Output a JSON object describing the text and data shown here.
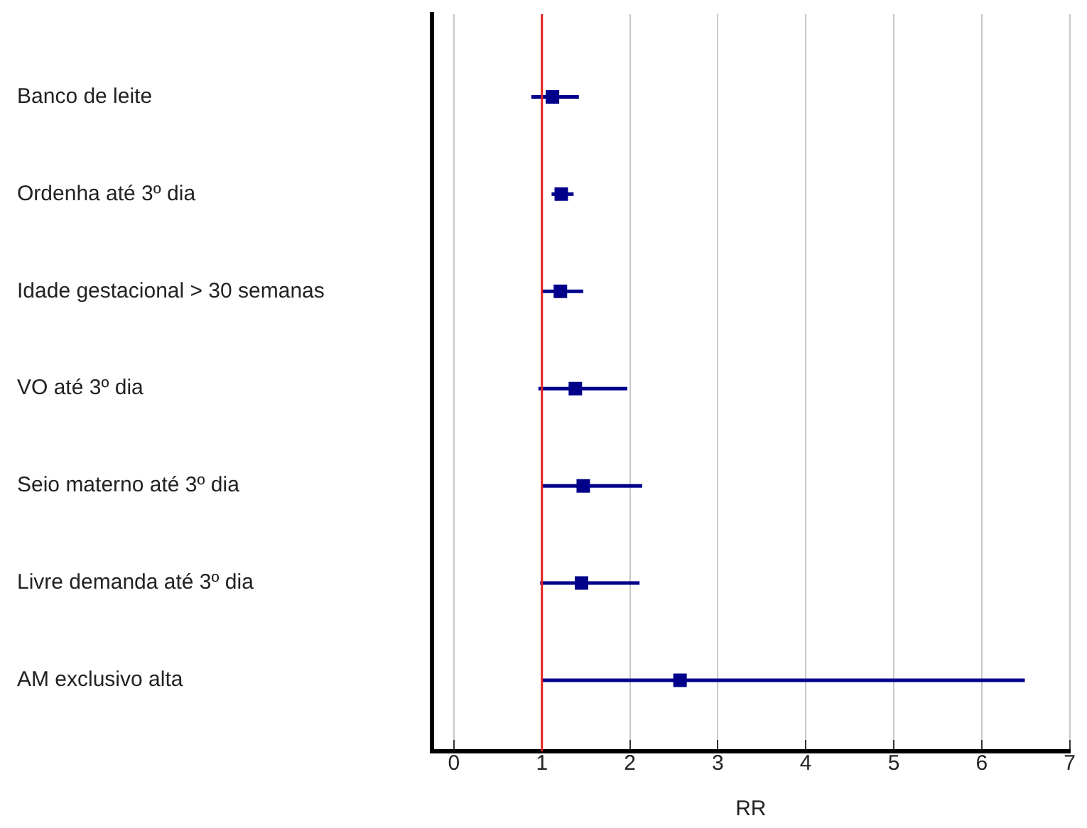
{
  "chart_data": {
    "type": "scatter",
    "orientation": "horizontal",
    "xlabel": "RR",
    "categories": [
      "Banco de leite",
      "Ordenha até 3º dia",
      "Idade gestacional > 30 semanas",
      "VO até 3º dia",
      "Seio materno até 3º dia",
      "Livre demanda até 3º dia",
      "AM exclusivo alta"
    ],
    "series": [
      {
        "color": "#00008b",
        "values": [
          1.12,
          1.22,
          1.21,
          1.38,
          1.47,
          1.45,
          2.57
        ],
        "errors": [
          [
            0.88,
            1.42
          ],
          [
            1.11,
            1.36
          ],
          [
            1.01,
            1.47
          ],
          [
            0.96,
            1.97
          ],
          [
            1.01,
            2.14
          ],
          [
            0.98,
            2.11
          ],
          [
            1.0,
            6.49
          ]
        ]
      }
    ],
    "xlim": [
      -0.25,
      7
    ],
    "xticks": [
      0,
      1,
      2,
      3,
      4,
      5,
      6,
      7
    ],
    "ref_lines": [
      {
        "axis": "x",
        "value": 1,
        "color": "#e02020"
      }
    ],
    "grid": "x",
    "marker": "square",
    "legend": false
  }
}
